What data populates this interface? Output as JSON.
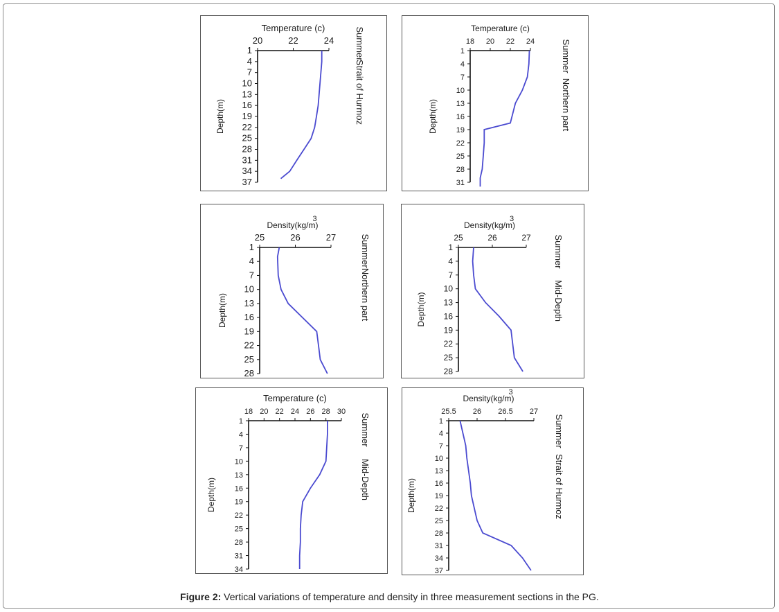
{
  "caption": {
    "label": "Figure 2:",
    "text": " Vertical variations of temperature and density in three measurement sections in the PG."
  },
  "colors": {
    "line": "#4a4ad0",
    "axis": "#111111"
  },
  "chart_data": [
    {
      "type": "line",
      "xlabel": "Temperature (c)",
      "ylabel": "Depth(m)",
      "season": "Summer",
      "region": "Strait of Hurmoz",
      "xticks": [
        "20",
        "22",
        "24"
      ],
      "xlim": [
        20,
        24
      ],
      "yticks": [
        "1",
        "4",
        "7",
        "10",
        "13",
        "16",
        "19",
        "22",
        "25",
        "28",
        "31",
        "34",
        "37"
      ],
      "ylim": [
        1,
        37
      ],
      "series": [
        {
          "x": [
            23.6,
            23.6,
            23.55,
            23.5,
            23.45,
            23.4,
            23.3,
            23.2,
            23.0,
            22.6,
            22.2,
            21.8,
            21.3
          ],
          "y": [
            1,
            4,
            7,
            10,
            13,
            16,
            19,
            22,
            25,
            28,
            31,
            34,
            36
          ]
        }
      ]
    },
    {
      "type": "line",
      "xlabel": "Temperature (c)",
      "ylabel": "Depth(m)",
      "season": "Summer",
      "region": "Northern part",
      "xticks": [
        "18",
        "20",
        "22",
        "24"
      ],
      "xlim": [
        18,
        24
      ],
      "yticks": [
        "1",
        "4",
        "7",
        "10",
        "13",
        "16",
        "19",
        "22",
        "25",
        "28",
        "31"
      ],
      "ylim": [
        1,
        31
      ],
      "series": [
        {
          "x": [
            23.9,
            23.85,
            23.7,
            23.2,
            22.5,
            22.0,
            19.4,
            19.4,
            19.3,
            19.2,
            19.0,
            19.0
          ],
          "y": [
            1,
            4,
            7,
            10,
            13,
            17.5,
            19,
            22,
            25,
            28,
            30,
            32
          ]
        }
      ]
    },
    {
      "type": "line",
      "xlabel": "Density(kg/m3)",
      "ylabel": "Depth(m)",
      "season": "Summer",
      "region": "Northern part",
      "xticks": [
        "25",
        "26",
        "27"
      ],
      "xlim": [
        25,
        27
      ],
      "yticks": [
        "1",
        "4",
        "7",
        "10",
        "13",
        "16",
        "19",
        "22",
        "25",
        "28"
      ],
      "ylim": [
        1,
        28
      ],
      "series": [
        {
          "x": [
            25.55,
            25.5,
            25.52,
            25.6,
            25.8,
            26.2,
            26.6,
            26.65,
            26.7,
            26.9
          ],
          "y": [
            1,
            3,
            7,
            10,
            13,
            16,
            19,
            22,
            25,
            28
          ]
        }
      ]
    },
    {
      "type": "line",
      "xlabel": "Density(kg/m3)",
      "ylabel": "Depth(m)",
      "season": "Summer",
      "region": "Mid-Depth",
      "xticks": [
        "25",
        "26",
        "27"
      ],
      "xlim": [
        25,
        27
      ],
      "yticks": [
        "1",
        "4",
        "7",
        "10",
        "13",
        "16",
        "19",
        "22",
        "25",
        "28"
      ],
      "ylim": [
        1,
        28
      ],
      "series": [
        {
          "x": [
            25.45,
            25.42,
            25.45,
            25.5,
            25.8,
            26.2,
            26.55,
            26.6,
            26.65,
            26.9
          ],
          "y": [
            1,
            4,
            7,
            10,
            13,
            16,
            19,
            22,
            25,
            28
          ]
        }
      ]
    },
    {
      "type": "line",
      "xlabel": "Temperature (c)",
      "ylabel": "Depth(m)",
      "season": "Summer",
      "region": "Mid-Depth",
      "xticks": [
        "18",
        "20",
        "22",
        "24",
        "26",
        "28",
        "30"
      ],
      "xlim": [
        18,
        30
      ],
      "yticks": [
        "1",
        "4",
        "7",
        "10",
        "13",
        "16",
        "19",
        "22",
        "25",
        "28",
        "31",
        "34"
      ],
      "ylim": [
        1,
        34
      ],
      "series": [
        {
          "x": [
            28.2,
            28.2,
            28.1,
            28.0,
            27.2,
            26.0,
            25.0,
            24.8,
            24.7,
            24.7,
            24.6,
            24.6
          ],
          "y": [
            1,
            4,
            7,
            10,
            13,
            16,
            19,
            22,
            25,
            28,
            31,
            34
          ]
        }
      ]
    },
    {
      "type": "line",
      "xlabel": "Density(kg/m3)",
      "ylabel": "Depth(m)",
      "season": "Summer",
      "region": "Strait of Hurmoz",
      "xticks": [
        "25.5",
        "26",
        "26.5",
        "27"
      ],
      "xlim": [
        25.5,
        27
      ],
      "yticks": [
        "1",
        "4",
        "7",
        "10",
        "13",
        "16",
        "19",
        "22",
        "25",
        "28",
        "31",
        "34",
        "37"
      ],
      "ylim": [
        1,
        37
      ],
      "series": [
        {
          "x": [
            25.7,
            25.75,
            25.8,
            25.82,
            25.85,
            25.88,
            25.9,
            25.95,
            26.0,
            26.1,
            26.6,
            26.8,
            26.95
          ],
          "y": [
            1,
            4,
            7,
            10,
            13,
            16,
            19,
            22,
            25,
            28,
            31,
            34,
            37
          ]
        }
      ]
    }
  ]
}
